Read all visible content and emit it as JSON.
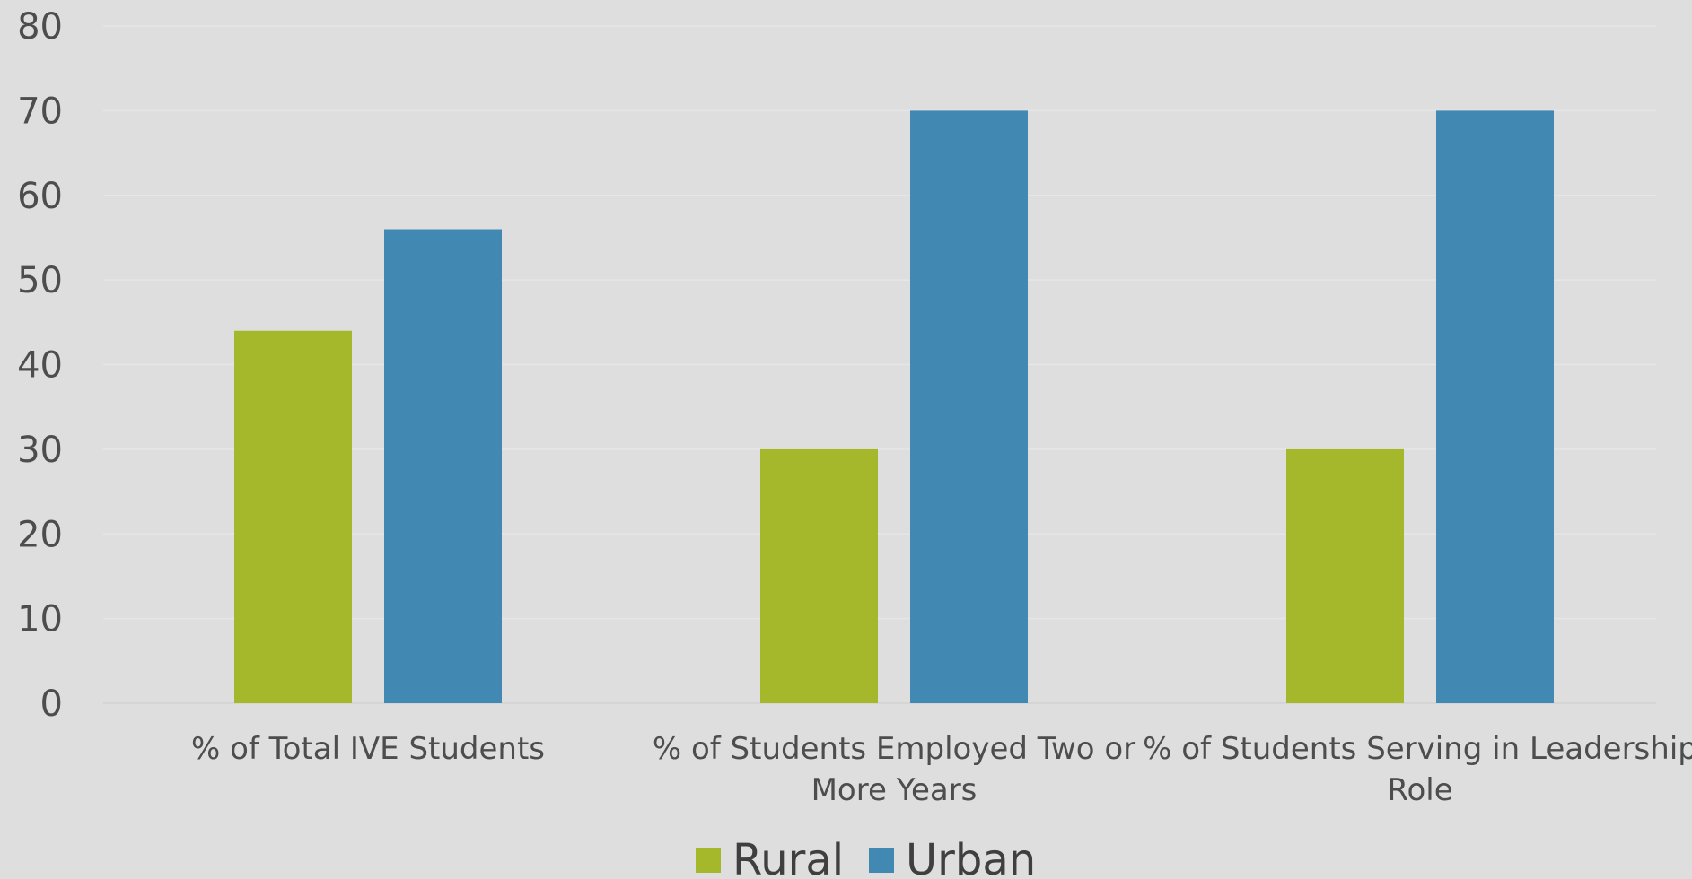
{
  "chart_data": {
    "type": "bar",
    "title": "",
    "xlabel": "",
    "ylabel": "",
    "ylim": [
      0,
      80
    ],
    "yticks": [
      0,
      10,
      20,
      30,
      40,
      50,
      60,
      70,
      80
    ],
    "grid": true,
    "legend_position": "bottom",
    "categories": [
      [
        "% of Total IVE Students"
      ],
      [
        "% of Students Employed Two or",
        "More Years"
      ],
      [
        "% of Students Serving in Leadership",
        "Role"
      ]
    ],
    "series": [
      {
        "name": "Rural",
        "color": "#a5b82b",
        "values": [
          44,
          30,
          30
        ]
      },
      {
        "name": "Urban",
        "color": "#4189b3",
        "values": [
          56,
          70,
          70
        ]
      }
    ]
  }
}
